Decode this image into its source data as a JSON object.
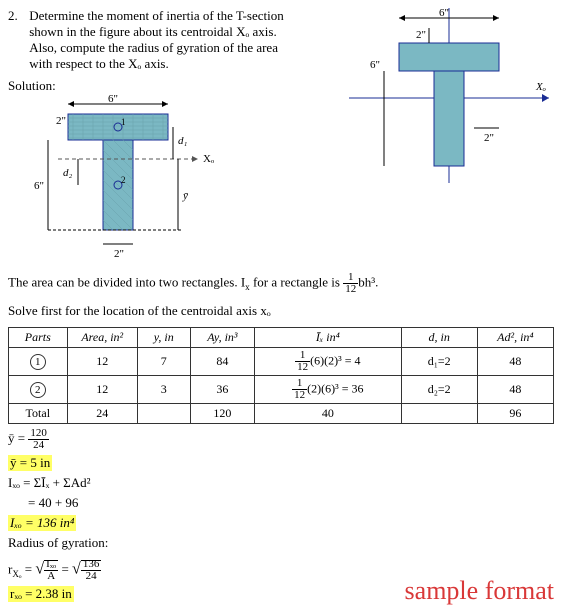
{
  "problem": {
    "number": "2.",
    "text_l1": "Determine the moment of inertia of the T-section",
    "text_l2": "shown in the figure about its centroidal Xₒ axis.",
    "text_l3": "Also, compute the radius of gyration of the area",
    "text_l4": "with respect to the Xₒ axis."
  },
  "solution_label": "Solution:",
  "figure_right": {
    "top_width": "6\"",
    "top_height": "2\"",
    "stem_height": "6\"",
    "stem_width": "2\"",
    "axis_label": "Xₒ",
    "shape_color": "#7bb8c3",
    "line_color": "#1a2c94"
  },
  "figure_left": {
    "top_width": "6\"",
    "left_dim": "6\"",
    "top_left": "2\"",
    "bottom_width": "2\"",
    "c1": "1",
    "c2": "2",
    "d1": "d₁",
    "d2": "d₂",
    "axis_label": "Xₒ",
    "ybar": "ȳ",
    "shape_color": "#7bb8c3",
    "dash_color": "#555"
  },
  "explain_text_pre": "The area can be divided into two rectangles. I",
  "explain_text_sub": "x",
  "explain_text_mid": " for a rectangle is ",
  "explain_text_frac_n": "1",
  "explain_text_frac_d": "12",
  "explain_text_post": "bh³.",
  "solve_line": "Solve first for the location of the centroidal axis xₒ",
  "table": {
    "headers": [
      "Parts",
      "Area, in²",
      "y, in",
      "Ay, in³",
      "Īₓ in⁴",
      "d, in",
      "Ad², in⁴"
    ],
    "rows": [
      {
        "part": "1",
        "area": "12",
        "y": "7",
        "ay": "84",
        "ix_html": "<span class='frac'><span class='n'>1</span><span class='d'>12</span></span>(6)(2)³ = 4",
        "d": "d₁=2",
        "ad2": "48"
      },
      {
        "part": "2",
        "area": "12",
        "y": "3",
        "ay": "36",
        "ix_html": "<span class='frac'><span class='n'>1</span><span class='d'>12</span></span>(2)(6)³ = 36",
        "d": "d₂=2",
        "ad2": "48"
      }
    ],
    "totals": {
      "label": "Total",
      "area": "24",
      "y": "",
      "ay": "120",
      "ix": "40",
      "d": "",
      "ad2": "96"
    }
  },
  "eq1_html": "ȳ = <span class='frac'><span class='n'>120</span><span class='d'>24</span></span>",
  "eq2": "ȳ = 5 in",
  "eq3": "Iₓₒ = ΣĪₓ + ΣAd²",
  "eq4": "= 40 + 96",
  "eq5": "Iₓₒ = 136 in⁴",
  "radius_label": "Radius of gyration:",
  "eq6_html": "r<sub>Xₒ</sub> = <span style='font-size:16px;'>√</span><span style='border-top:1px solid #000;'><span class='frac'><span class='n'>Iₓₒ</span><span class='d'>A</span></span></span> = <span style='font-size:16px;'>√</span><span style='border-top:1px solid #000;'><span class='frac'><span class='n'>136</span><span class='d'>24</span></span></span>",
  "eq7": "rₓₒ = 2.38 in",
  "sample_format": "sample format"
}
